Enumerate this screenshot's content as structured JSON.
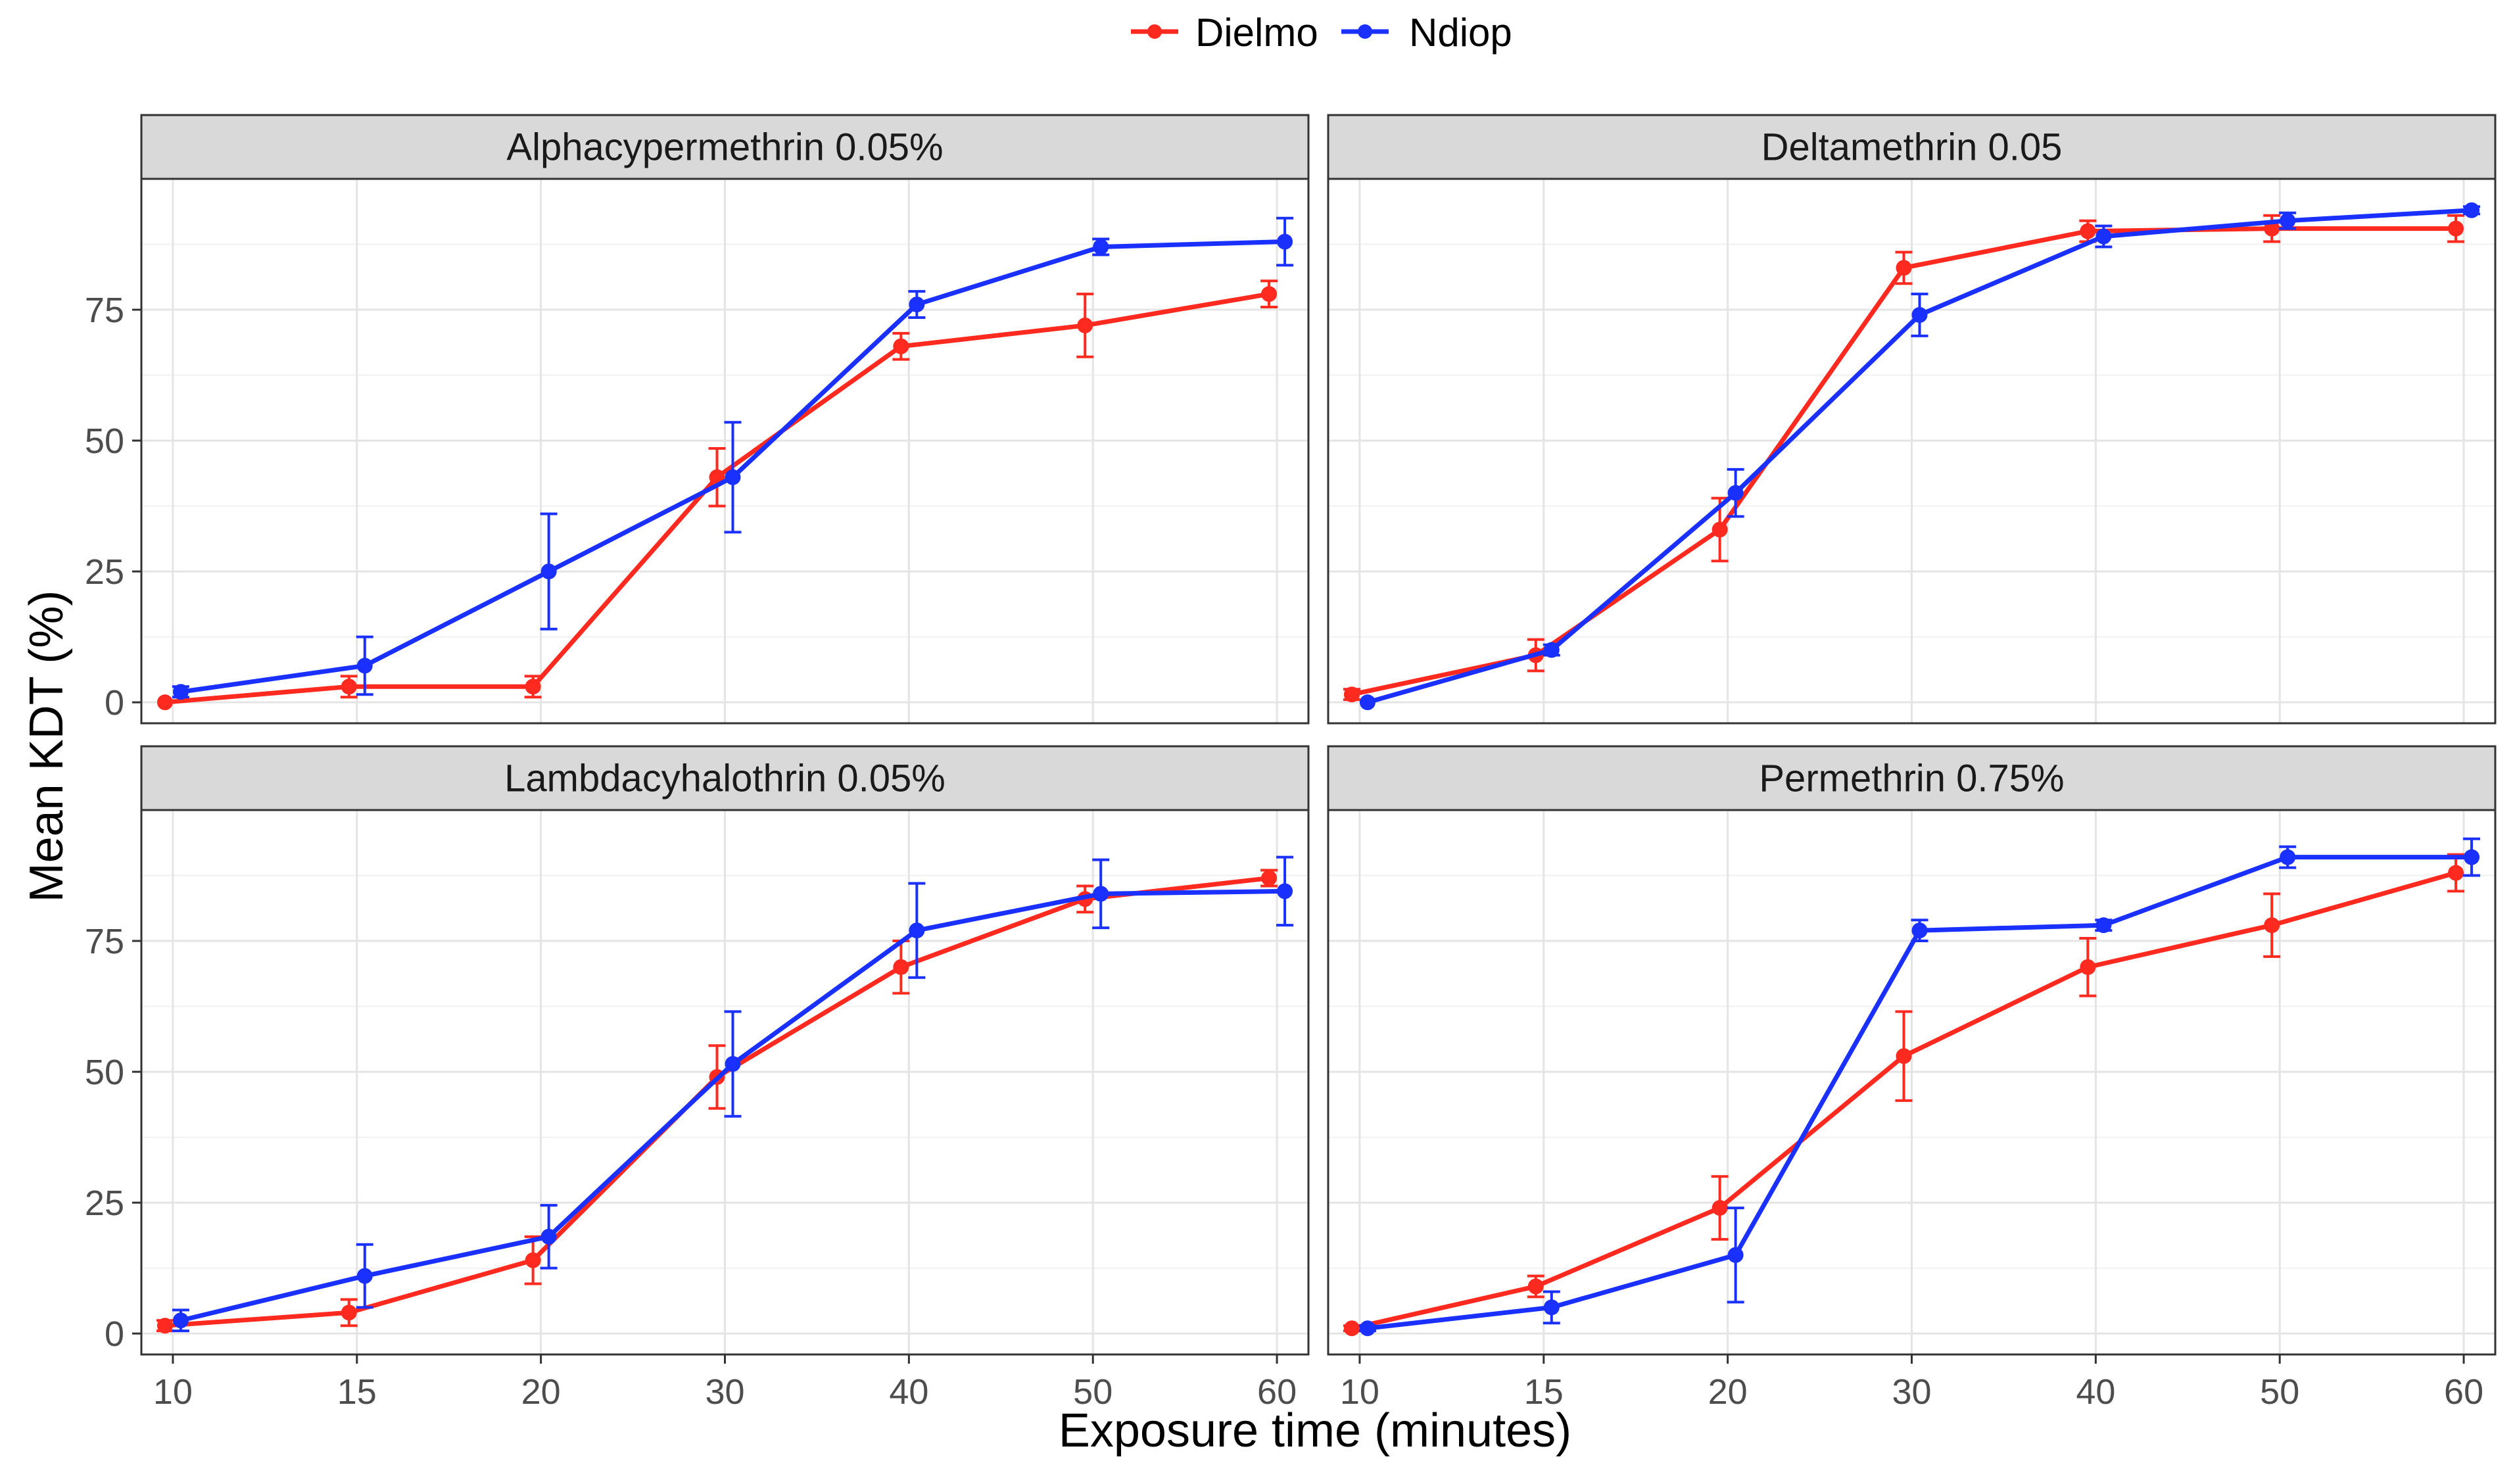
{
  "chart_data": {
    "type": "line",
    "layout": "facet-grid-2x2",
    "xlabel": "Exposure time (minutes)",
    "ylabel": "Mean KDT (%)",
    "x_categories": [
      "10",
      "15",
      "20",
      "30",
      "40",
      "50",
      "60"
    ],
    "y_ticks": [
      0,
      25,
      50,
      75
    ],
    "ylim": [
      -4,
      100
    ],
    "legend": {
      "position": "top-center",
      "items": [
        {
          "name": "Dielmo",
          "color": "#ff2a1f"
        },
        {
          "name": "Ndiop",
          "color": "#1a30ff"
        }
      ]
    },
    "panels": [
      {
        "title": "Alphacypermethrin 0.05%",
        "series": [
          {
            "name": "Dielmo",
            "values": [
              0,
              3,
              3,
              43,
              68,
              72,
              78
            ],
            "errors": [
              0,
              2,
              2,
              5.5,
              2.5,
              6,
              2.5
            ]
          },
          {
            "name": "Ndiop",
            "values": [
              2,
              7,
              25,
              43,
              76,
              87,
              88
            ],
            "errors": [
              1,
              5.5,
              11,
              10.5,
              2.5,
              1.5,
              4.5
            ]
          }
        ]
      },
      {
        "title": "Deltamethrin 0.05",
        "series": [
          {
            "name": "Dielmo",
            "values": [
              1.5,
              9,
              33,
              83,
              90,
              90.5,
              90.5
            ],
            "errors": [
              1,
              3,
              6,
              3,
              2,
              2.5,
              2.5
            ]
          },
          {
            "name": "Ndiop",
            "values": [
              0,
              10,
              40,
              74,
              89,
              92,
              94
            ],
            "errors": [
              0,
              1,
              4.5,
              4,
              2,
              1.5,
              0.7
            ]
          }
        ]
      },
      {
        "title": "Lambdacyhalothrin 0.05%",
        "series": [
          {
            "name": "Dielmo",
            "values": [
              1.5,
              4,
              14,
              49,
              70,
              83,
              87
            ],
            "errors": [
              1,
              2.5,
              4.5,
              6,
              5,
              2.5,
              1.5
            ]
          },
          {
            "name": "Ndiop",
            "values": [
              2.5,
              11,
              18.5,
              51.5,
              77,
              84,
              84.5
            ],
            "errors": [
              2,
              6,
              6,
              10,
              9,
              6.5,
              6.5
            ]
          }
        ]
      },
      {
        "title": "Permethrin 0.75%",
        "series": [
          {
            "name": "Dielmo",
            "values": [
              1,
              9,
              24,
              53,
              70,
              78,
              88
            ],
            "errors": [
              0.5,
              2,
              6,
              8.5,
              5.5,
              6,
              3.5
            ]
          },
          {
            "name": "Ndiop",
            "values": [
              1,
              5,
              15,
              77,
              78,
              91,
              91
            ],
            "errors": [
              0.5,
              3,
              9,
              2,
              1,
              2,
              3.5
            ]
          }
        ]
      }
    ]
  }
}
